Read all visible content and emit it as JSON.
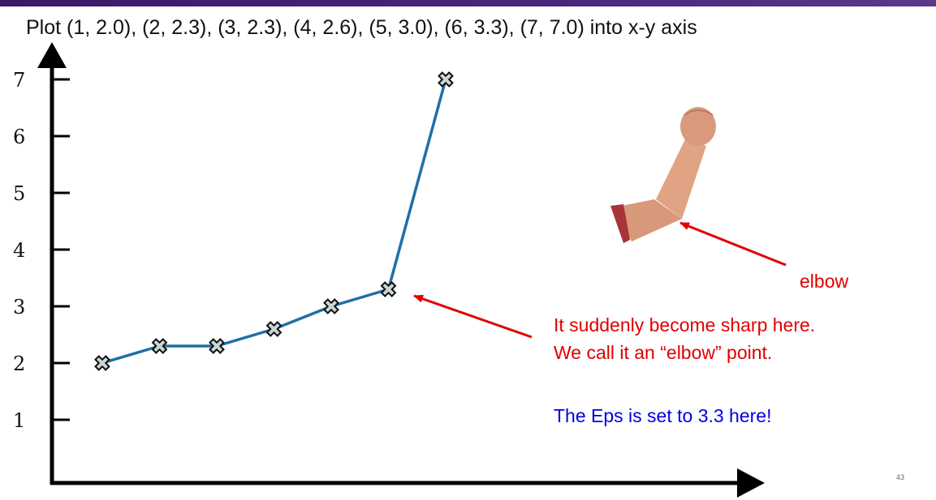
{
  "slide": {
    "title": "Plot (1, 2.0), (2, 2.3), (3, 2.3), (4, 2.6), (5, 3.0), (6, 3.3), (7, 7.0) into x-y axis",
    "annotation_line1": "It suddenly become sharp here.",
    "annotation_line2": "We call it an “elbow” point.",
    "eps_note": "The Eps is set to 3.3 here!",
    "elbow_label": "elbow",
    "page_number": "43"
  },
  "colors": {
    "line": "#1f6fa6",
    "annotation": "#e00000",
    "eps_text": "#0000e0",
    "axis": "#000000"
  },
  "chart_data": {
    "type": "line",
    "title": "Plot (1, 2.0), (2, 2.3), (3, 2.3), (4, 2.6), (5, 3.0), (6, 3.3), (7, 7.0) into x-y axis",
    "x": [
      1,
      2,
      3,
      4,
      5,
      6,
      7
    ],
    "y": [
      2.0,
      2.3,
      2.3,
      2.6,
      3.0,
      3.3,
      7.0
    ],
    "xlabel": "",
    "ylabel": "",
    "yticks": [
      "1",
      "2",
      "3",
      "4",
      "5",
      "6",
      "7"
    ],
    "ylim": [
      0,
      7.4
    ],
    "marker": "x",
    "grid": false,
    "annotations": [
      {
        "target_point": 6,
        "text": "It suddenly become sharp here. We call it an “elbow” point."
      }
    ]
  }
}
